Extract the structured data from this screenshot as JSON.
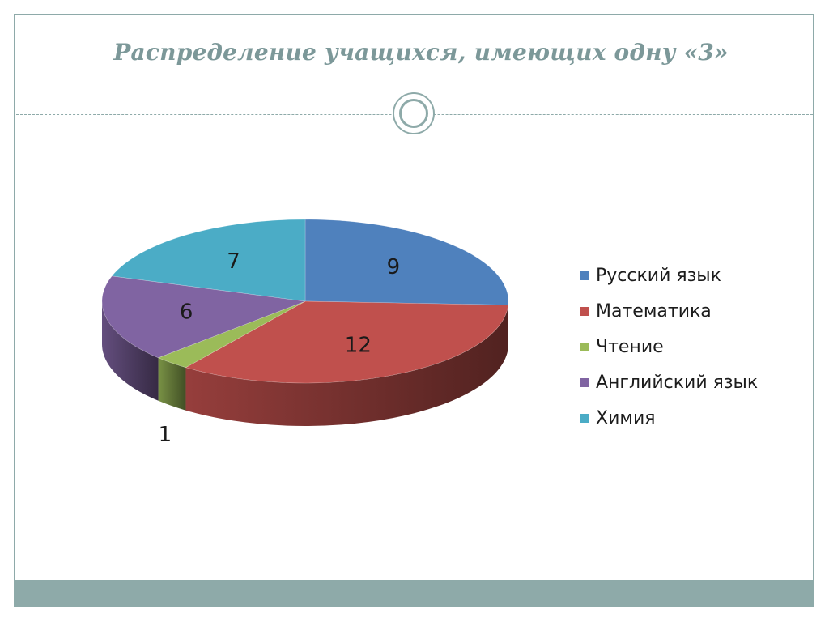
{
  "slide": {
    "title": "Распределение учащихся, имеющих одну «3»"
  },
  "chart_data": {
    "type": "pie",
    "title": "",
    "categories": [
      "Русский язык",
      "Математика",
      "Чтение",
      "Английский язык",
      "Химия"
    ],
    "values": [
      9,
      12,
      1,
      6,
      7
    ],
    "colors": [
      "#4f81bd",
      "#c0504d",
      "#9bbb59",
      "#8064a2",
      "#4bacc6"
    ],
    "legend_position": "right",
    "data_labels": true,
    "style": "3d"
  }
}
